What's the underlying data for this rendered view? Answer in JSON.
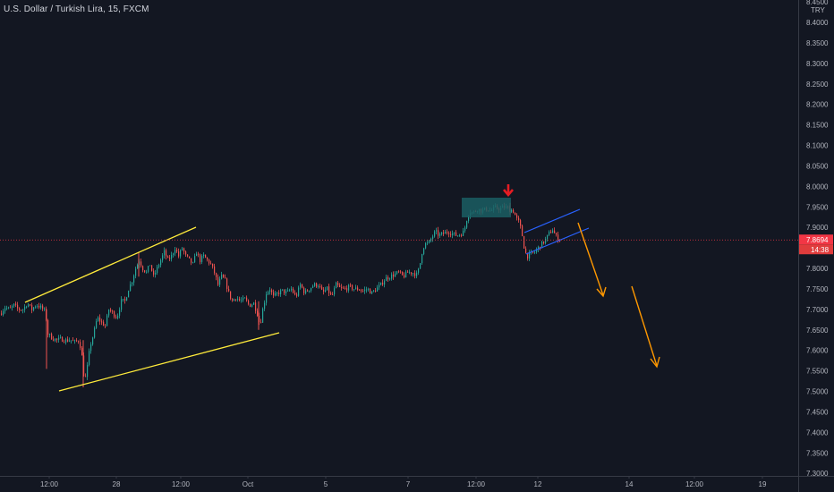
{
  "header": {
    "title": "U.S. Dollar / Turkish Lira, 15, FXCM",
    "currency": "TRY"
  },
  "colors": {
    "background": "#131722",
    "candle_up": "#26a69a",
    "candle_down": "#ef5350",
    "trendline": "#ffeb3b",
    "channel": "#2962ff",
    "forecast_arrow": "#ff9800",
    "marker_arrow": "#e51c23",
    "zone_fill": "#1b5e63",
    "price_line": "#f23645",
    "axis_text": "#b2b5be"
  },
  "price_badge": {
    "price": "7.8694",
    "countdown": "14:38"
  },
  "chart_data": {
    "type": "candlestick",
    "title": "U.S. Dollar / Turkish Lira, 15, FXCM",
    "ylim": [
      7.28,
      8.44
    ],
    "y_ticks": [
      "8.4000",
      "8.3500",
      "8.3000",
      "8.2500",
      "8.2000",
      "8.1500",
      "8.1000",
      "8.0500",
      "8.0000",
      "7.9500",
      "7.9000",
      "7.8500",
      "7.8000",
      "7.7500",
      "7.7000",
      "7.6500",
      "7.6000",
      "7.5500",
      "7.5000",
      "7.4500",
      "7.4000",
      "7.3500",
      "7.3000"
    ],
    "y_top_partial": "8.4500",
    "x_ticks": [
      "12:00",
      "28",
      "12:00",
      "Oct",
      "5",
      "7",
      "12:00",
      "12",
      "14",
      "12:00",
      "19"
    ],
    "last_price": 7.8694,
    "price_path": [
      [
        0,
        7.69
      ],
      [
        5,
        7.705
      ],
      [
        10,
        7.7
      ],
      [
        15,
        7.71
      ],
      [
        20,
        7.7
      ],
      [
        25,
        7.7
      ],
      [
        30,
        7.715
      ],
      [
        35,
        7.7
      ],
      [
        40,
        7.712
      ],
      [
        45,
        7.705
      ],
      [
        50,
        7.695
      ],
      [
        53,
        7.64
      ],
      [
        58,
        7.63
      ],
      [
        63,
        7.625
      ],
      [
        68,
        7.628
      ],
      [
        73,
        7.624
      ],
      [
        78,
        7.626
      ],
      [
        83,
        7.62
      ],
      [
        88,
        7.625
      ],
      [
        91,
        7.585
      ],
      [
        94,
        7.52
      ],
      [
        97,
        7.56
      ],
      [
        100,
        7.61
      ],
      [
        104,
        7.64
      ],
      [
        108,
        7.68
      ],
      [
        112,
        7.67
      ],
      [
        117,
        7.66
      ],
      [
        121,
        7.7
      ],
      [
        126,
        7.69
      ],
      [
        130,
        7.68
      ],
      [
        135,
        7.72
      ],
      [
        139,
        7.72
      ],
      [
        143,
        7.75
      ],
      [
        147,
        7.77
      ],
      [
        151,
        7.8
      ],
      [
        155,
        7.82
      ],
      [
        159,
        7.8
      ],
      [
        163,
        7.79
      ],
      [
        167,
        7.81
      ],
      [
        171,
        7.78
      ],
      [
        175,
        7.8
      ],
      [
        179,
        7.82
      ],
      [
        183,
        7.84
      ],
      [
        187,
        7.82
      ],
      [
        191,
        7.83
      ],
      [
        195,
        7.85
      ],
      [
        199,
        7.83
      ],
      [
        203,
        7.85
      ],
      [
        207,
        7.83
      ],
      [
        211,
        7.82
      ],
      [
        215,
        7.81
      ],
      [
        219,
        7.84
      ],
      [
        223,
        7.82
      ],
      [
        227,
        7.83
      ],
      [
        231,
        7.82
      ],
      [
        235,
        7.81
      ],
      [
        239,
        7.79
      ],
      [
        243,
        7.76
      ],
      [
        247,
        7.78
      ],
      [
        251,
        7.77
      ],
      [
        255,
        7.74
      ],
      [
        259,
        7.72
      ],
      [
        263,
        7.73
      ],
      [
        268,
        7.72
      ],
      [
        273,
        7.725
      ],
      [
        278,
        7.71
      ],
      [
        283,
        7.715
      ],
      [
        287,
        7.69
      ],
      [
        290,
        7.66
      ],
      [
        293,
        7.7
      ],
      [
        297,
        7.74
      ],
      [
        301,
        7.75
      ],
      [
        305,
        7.73
      ],
      [
        310,
        7.74
      ],
      [
        315,
        7.745
      ],
      [
        320,
        7.74
      ],
      [
        325,
        7.75
      ],
      [
        330,
        7.73
      ],
      [
        335,
        7.76
      ],
      [
        340,
        7.74
      ],
      [
        345,
        7.75
      ],
      [
        350,
        7.76
      ],
      [
        355,
        7.76
      ],
      [
        360,
        7.74
      ],
      [
        365,
        7.75
      ],
      [
        370,
        7.73
      ],
      [
        375,
        7.76
      ],
      [
        380,
        7.75
      ],
      [
        385,
        7.75
      ],
      [
        390,
        7.755
      ],
      [
        395,
        7.75
      ],
      [
        400,
        7.75
      ],
      [
        405,
        7.745
      ],
      [
        410,
        7.75
      ],
      [
        415,
        7.74
      ],
      [
        420,
        7.75
      ],
      [
        425,
        7.76
      ],
      [
        430,
        7.775
      ],
      [
        435,
        7.78
      ],
      [
        440,
        7.785
      ],
      [
        445,
        7.79
      ],
      [
        450,
        7.78
      ],
      [
        455,
        7.79
      ],
      [
        460,
        7.79
      ],
      [
        465,
        7.785
      ],
      [
        468,
        7.8
      ],
      [
        471,
        7.84
      ],
      [
        474,
        7.86
      ],
      [
        478,
        7.86
      ],
      [
        482,
        7.875
      ],
      [
        486,
        7.89
      ],
      [
        490,
        7.88
      ],
      [
        495,
        7.885
      ],
      [
        500,
        7.89
      ],
      [
        505,
        7.885
      ],
      [
        510,
        7.88
      ],
      [
        515,
        7.885
      ],
      [
        518,
        7.89
      ],
      [
        521,
        7.92
      ],
      [
        524,
        7.94
      ],
      [
        528,
        7.935
      ],
      [
        533,
        7.945
      ],
      [
        538,
        7.94
      ],
      [
        543,
        7.945
      ],
      [
        548,
        7.94
      ],
      [
        553,
        7.948
      ],
      [
        558,
        7.945
      ],
      [
        563,
        7.95
      ],
      [
        568,
        7.945
      ],
      [
        573,
        7.94
      ],
      [
        577,
        7.92
      ],
      [
        580,
        7.91
      ],
      [
        583,
        7.88
      ],
      [
        586,
        7.84
      ],
      [
        589,
        7.83
      ],
      [
        593,
        7.835
      ],
      [
        597,
        7.84
      ],
      [
        601,
        7.85
      ],
      [
        605,
        7.86
      ],
      [
        609,
        7.87
      ],
      [
        613,
        7.885
      ],
      [
        617,
        7.895
      ],
      [
        620,
        7.88
      ],
      [
        624,
        7.87
      ],
      [
        626,
        7.8694
      ]
    ]
  }
}
